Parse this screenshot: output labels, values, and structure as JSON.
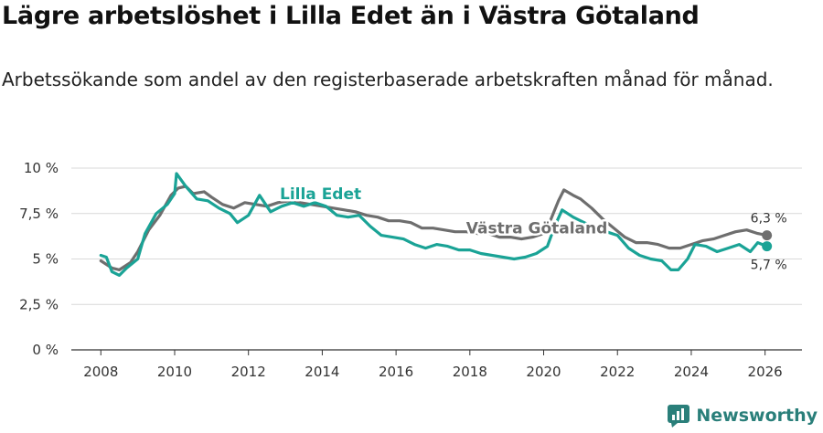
{
  "header": {
    "title": "Lägre arbetslöshet i Lilla Edet än i Västra Götaland",
    "subtitle": "Arbetssökande som andel av den registerbaserade arbetskraften månad för månad."
  },
  "brand": {
    "name": "Newsworthy"
  },
  "colors": {
    "lilla_edet": "#1aa396",
    "vastra_gotaland": "#6e6e6e",
    "grid": "#d9d9d9",
    "axis": "#333333",
    "brand": "#2a7f7a"
  },
  "chart_data": {
    "type": "line",
    "title": "Lägre arbetslöshet i Lilla Edet än i Västra Götaland",
    "xlabel": "",
    "ylabel": "",
    "xlim": [
      2007.2,
      2027.0
    ],
    "ylim": [
      0,
      10
    ],
    "x_ticks": [
      2008,
      2010,
      2012,
      2014,
      2016,
      2018,
      2020,
      2022,
      2024,
      2026
    ],
    "y_ticks": [
      {
        "value": 0,
        "label": "0 %"
      },
      {
        "value": 2.5,
        "label": "2,5 %"
      },
      {
        "value": 5,
        "label": "5 %"
      },
      {
        "value": 7.5,
        "label": "7,5 %"
      },
      {
        "value": 10,
        "label": "10 %"
      }
    ],
    "series": [
      {
        "name": "Västra Götaland",
        "label": "Västra Götaland",
        "end_label": "6,3 %",
        "end_value": 6.3,
        "points": [
          [
            2008.0,
            4.9
          ],
          [
            2008.3,
            4.5
          ],
          [
            2008.5,
            4.4
          ],
          [
            2008.8,
            4.8
          ],
          [
            2009.0,
            5.4
          ],
          [
            2009.3,
            6.6
          ],
          [
            2009.6,
            7.4
          ],
          [
            2009.9,
            8.5
          ],
          [
            2010.1,
            8.9
          ],
          [
            2010.3,
            9.0
          ],
          [
            2010.5,
            8.6
          ],
          [
            2010.8,
            8.7
          ],
          [
            2011.0,
            8.4
          ],
          [
            2011.3,
            8.0
          ],
          [
            2011.6,
            7.8
          ],
          [
            2011.9,
            8.1
          ],
          [
            2012.2,
            8.0
          ],
          [
            2012.5,
            7.9
          ],
          [
            2012.8,
            8.1
          ],
          [
            2013.1,
            8.2
          ],
          [
            2013.4,
            8.1
          ],
          [
            2013.7,
            8.0
          ],
          [
            2014.0,
            7.9
          ],
          [
            2014.3,
            7.8
          ],
          [
            2014.6,
            7.7
          ],
          [
            2014.9,
            7.6
          ],
          [
            2015.2,
            7.4
          ],
          [
            2015.5,
            7.3
          ],
          [
            2015.8,
            7.1
          ],
          [
            2016.1,
            7.1
          ],
          [
            2016.4,
            7.0
          ],
          [
            2016.7,
            6.7
          ],
          [
            2017.0,
            6.7
          ],
          [
            2017.3,
            6.6
          ],
          [
            2017.6,
            6.5
          ],
          [
            2017.9,
            6.5
          ],
          [
            2018.2,
            6.4
          ],
          [
            2018.5,
            6.4
          ],
          [
            2018.8,
            6.2
          ],
          [
            2019.1,
            6.2
          ],
          [
            2019.4,
            6.1
          ],
          [
            2019.7,
            6.2
          ],
          [
            2020.0,
            6.4
          ],
          [
            2020.2,
            7.2
          ],
          [
            2020.4,
            8.2
          ],
          [
            2020.55,
            8.8
          ],
          [
            2020.8,
            8.5
          ],
          [
            2021.0,
            8.3
          ],
          [
            2021.3,
            7.8
          ],
          [
            2021.6,
            7.2
          ],
          [
            2021.9,
            6.7
          ],
          [
            2022.2,
            6.2
          ],
          [
            2022.5,
            5.9
          ],
          [
            2022.8,
            5.9
          ],
          [
            2023.1,
            5.8
          ],
          [
            2023.4,
            5.6
          ],
          [
            2023.7,
            5.6
          ],
          [
            2024.0,
            5.8
          ],
          [
            2024.3,
            6.0
          ],
          [
            2024.6,
            6.1
          ],
          [
            2024.9,
            6.3
          ],
          [
            2025.2,
            6.5
          ],
          [
            2025.5,
            6.6
          ],
          [
            2025.8,
            6.4
          ],
          [
            2026.05,
            6.3
          ]
        ]
      },
      {
        "name": "Lilla Edet",
        "label": "Lilla Edet",
        "end_label": "5,7 %",
        "end_value": 5.7,
        "points": [
          [
            2008.0,
            5.2
          ],
          [
            2008.15,
            5.1
          ],
          [
            2008.3,
            4.3
          ],
          [
            2008.5,
            4.1
          ],
          [
            2008.7,
            4.5
          ],
          [
            2009.0,
            5.0
          ],
          [
            2009.2,
            6.4
          ],
          [
            2009.5,
            7.5
          ],
          [
            2009.8,
            8.0
          ],
          [
            2010.0,
            8.6
          ],
          [
            2010.05,
            9.7
          ],
          [
            2010.3,
            9.0
          ],
          [
            2010.6,
            8.3
          ],
          [
            2010.9,
            8.2
          ],
          [
            2011.2,
            7.8
          ],
          [
            2011.5,
            7.5
          ],
          [
            2011.7,
            7.0
          ],
          [
            2012.0,
            7.4
          ],
          [
            2012.3,
            8.5
          ],
          [
            2012.6,
            7.6
          ],
          [
            2012.9,
            7.9
          ],
          [
            2013.2,
            8.1
          ],
          [
            2013.5,
            7.9
          ],
          [
            2013.8,
            8.1
          ],
          [
            2014.1,
            7.9
          ],
          [
            2014.4,
            7.4
          ],
          [
            2014.7,
            7.3
          ],
          [
            2015.0,
            7.4
          ],
          [
            2015.3,
            6.8
          ],
          [
            2015.6,
            6.3
          ],
          [
            2015.9,
            6.2
          ],
          [
            2016.2,
            6.1
          ],
          [
            2016.5,
            5.8
          ],
          [
            2016.8,
            5.6
          ],
          [
            2017.1,
            5.8
          ],
          [
            2017.4,
            5.7
          ],
          [
            2017.7,
            5.5
          ],
          [
            2018.0,
            5.5
          ],
          [
            2018.3,
            5.3
          ],
          [
            2018.6,
            5.2
          ],
          [
            2018.9,
            5.1
          ],
          [
            2019.2,
            5.0
          ],
          [
            2019.5,
            5.1
          ],
          [
            2019.8,
            5.3
          ],
          [
            2020.1,
            5.7
          ],
          [
            2020.3,
            6.8
          ],
          [
            2020.5,
            7.7
          ],
          [
            2020.8,
            7.3
          ],
          [
            2021.1,
            7.0
          ],
          [
            2021.4,
            6.7
          ],
          [
            2021.7,
            6.5
          ],
          [
            2022.0,
            6.3
          ],
          [
            2022.3,
            5.6
          ],
          [
            2022.6,
            5.2
          ],
          [
            2022.9,
            5.0
          ],
          [
            2023.2,
            4.9
          ],
          [
            2023.45,
            4.4
          ],
          [
            2023.65,
            4.4
          ],
          [
            2023.9,
            5.0
          ],
          [
            2024.1,
            5.8
          ],
          [
            2024.4,
            5.7
          ],
          [
            2024.7,
            5.4
          ],
          [
            2025.0,
            5.6
          ],
          [
            2025.3,
            5.8
          ],
          [
            2025.6,
            5.4
          ],
          [
            2025.8,
            5.9
          ],
          [
            2026.05,
            5.7
          ]
        ]
      }
    ]
  }
}
